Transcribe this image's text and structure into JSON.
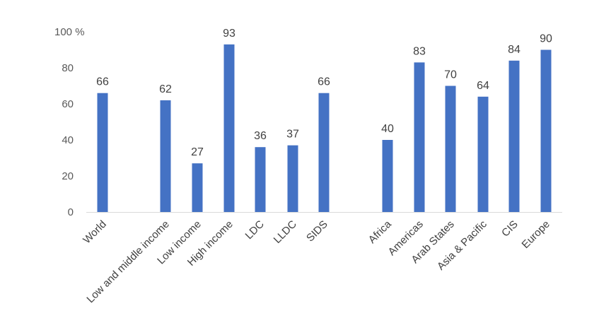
{
  "chart_data": {
    "type": "bar",
    "title": "",
    "xlabel": "",
    "ylabel": "",
    "ylim": [
      0,
      100
    ],
    "yticks": [
      "0",
      "20",
      "40",
      "60",
      "80",
      "100 %"
    ],
    "grid": false,
    "legend": "none",
    "bar_color": "#4472C4",
    "categories": [
      "World",
      "Low and middle income",
      "Low income",
      "High income",
      "LDC",
      "LLDC",
      "SIDS",
      "Africa",
      "Americas",
      "Arab States",
      "Asia & Pacific",
      "CIS",
      "Europe"
    ],
    "values": [
      66,
      62,
      27,
      93,
      36,
      37,
      66,
      40,
      83,
      70,
      64,
      84,
      90
    ],
    "data_labels": [
      "66",
      "62",
      "27",
      "93",
      "36",
      "37",
      "66",
      "40",
      "83",
      "70",
      "64",
      "84",
      "90"
    ]
  }
}
